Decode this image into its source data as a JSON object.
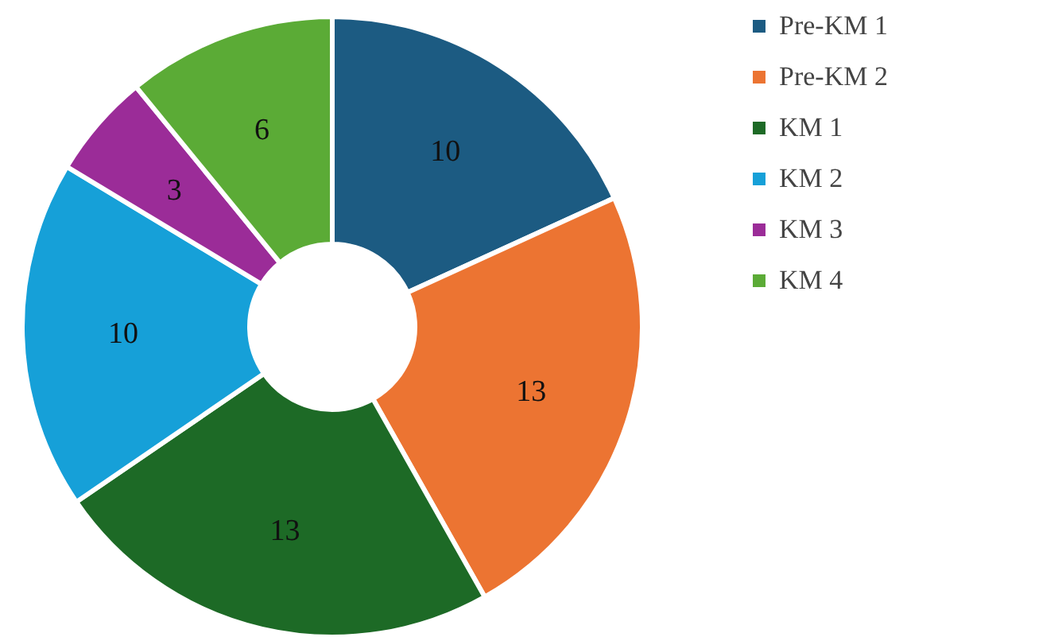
{
  "chart_data": {
    "type": "donut",
    "categories": [
      "Pre-KM 1",
      "Pre-KM 2",
      "KM 1",
      "KM 2",
      "KM 3",
      "KM 4"
    ],
    "values": [
      10,
      13,
      13,
      10,
      3,
      6
    ],
    "colors": [
      "#1c5b82",
      "#ec7432",
      "#1d6a26",
      "#16a0d8",
      "#9b2c98",
      "#5bab36"
    ],
    "data_labels": true,
    "legend": "right"
  }
}
